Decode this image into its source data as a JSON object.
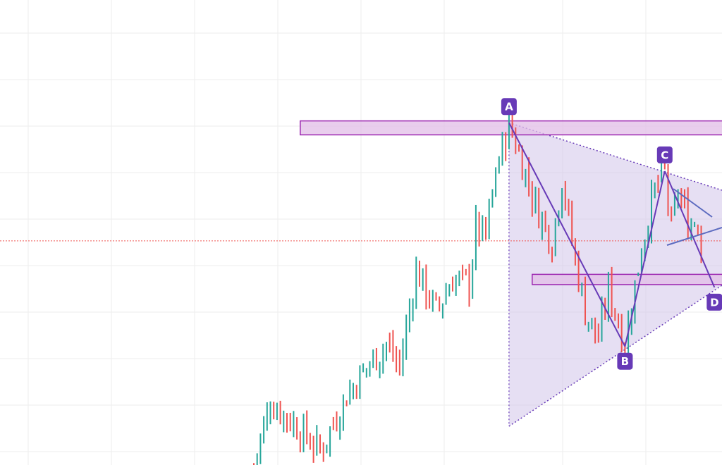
{
  "chart_data": {
    "type": "candlestick",
    "title": "",
    "xlabel": "",
    "ylabel": "",
    "grid": true,
    "price_scale_note_hidden_axes": true,
    "ylim": [
      0,
      100
    ],
    "price_path_pivots": [
      [
        0,
        0
      ],
      [
        5,
        13.6
      ],
      [
        12,
        9
      ],
      [
        20,
        3
      ],
      [
        28,
        15
      ],
      [
        34,
        21
      ],
      [
        40,
        26
      ],
      [
        44,
        21
      ],
      [
        49,
        42
      ],
      [
        55,
        33
      ],
      [
        60,
        40
      ],
      [
        65,
        39
      ],
      [
        67,
        51
      ],
      [
        70,
        49
      ],
      [
        73,
        63
      ],
      [
        77,
        73.6
      ],
      [
        85,
        56
      ],
      [
        90,
        48
      ],
      [
        93,
        62
      ],
      [
        96,
        48
      ],
      [
        100,
        33
      ],
      [
        104,
        27
      ],
      [
        107,
        38
      ],
      [
        112,
        26
      ],
      [
        117,
        47
      ],
      [
        121,
        59
      ],
      [
        124,
        63.2
      ],
      [
        126,
        50
      ],
      [
        128,
        59
      ],
      [
        131,
        52
      ],
      [
        134,
        53
      ],
      [
        135,
        45
      ]
    ],
    "current_price": 48.2,
    "zones": [
      {
        "from_bar": 14,
        "price_top": 74,
        "price_bottom": 71
      },
      {
        "from_bar": 84,
        "price_top": 41,
        "price_bottom": 38.8
      }
    ],
    "pattern_points": [
      {
        "label": "A",
        "bar": 77,
        "price": 73.6
      },
      {
        "label": "B",
        "bar": 112,
        "price": 25.5
      },
      {
        "label": "C",
        "bar": 124,
        "price": 63.2
      },
      {
        "label": "D",
        "bar": 139,
        "price": 38.2
      }
    ],
    "colors": {
      "up": "#26a69a",
      "down": "#ef5350",
      "pattern": "#673ab7",
      "zone_fill": "#e1bee7",
      "zone_border": "#9c27b0",
      "triangle_fill": "#d1c4e9",
      "trendline_blue": "#5c6bc0",
      "price_line": "#ef5350",
      "grid": "#eeeeee"
    }
  }
}
